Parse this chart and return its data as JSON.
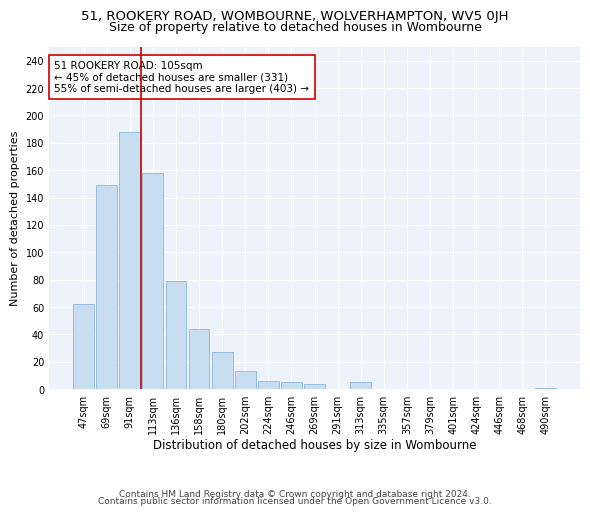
{
  "title_line1": "51, ROOKERY ROAD, WOMBOURNE, WOLVERHAMPTON, WV5 0JH",
  "title_line2": "Size of property relative to detached houses in Wombourne",
  "xlabel": "Distribution of detached houses by size in Wombourne",
  "ylabel": "Number of detached properties",
  "footnote1": "Contains HM Land Registry data © Crown copyright and database right 2024.",
  "footnote2": "Contains public sector information licensed under the Open Government Licence v3.0.",
  "categories": [
    "47sqm",
    "69sqm",
    "91sqm",
    "113sqm",
    "136sqm",
    "158sqm",
    "180sqm",
    "202sqm",
    "224sqm",
    "246sqm",
    "269sqm",
    "291sqm",
    "313sqm",
    "335sqm",
    "357sqm",
    "379sqm",
    "401sqm",
    "424sqm",
    "446sqm",
    "468sqm",
    "490sqm"
  ],
  "values": [
    62,
    149,
    188,
    158,
    79,
    44,
    27,
    13,
    6,
    5,
    4,
    0,
    5,
    0,
    0,
    0,
    0,
    0,
    0,
    0,
    1
  ],
  "bar_color": "#c9ddf0",
  "bar_edge_color": "#7bafd4",
  "vline_x_index": 3,
  "vline_color": "#cc0000",
  "annotation_text": "51 ROOKERY ROAD: 105sqm\n← 45% of detached houses are smaller (331)\n55% of semi-detached houses are larger (403) →",
  "annotation_box_facecolor": "white",
  "annotation_box_edgecolor": "#cc0000",
  "ylim": [
    0,
    250
  ],
  "yticks": [
    0,
    20,
    40,
    60,
    80,
    100,
    120,
    140,
    160,
    180,
    200,
    220,
    240
  ],
  "background_color": "#eef2fb",
  "grid_color": "white",
  "title1_fontsize": 9.5,
  "title2_fontsize": 9,
  "xlabel_fontsize": 8.5,
  "ylabel_fontsize": 8,
  "tick_fontsize": 7,
  "annotation_fontsize": 7.5,
  "footnote_fontsize": 6.5
}
